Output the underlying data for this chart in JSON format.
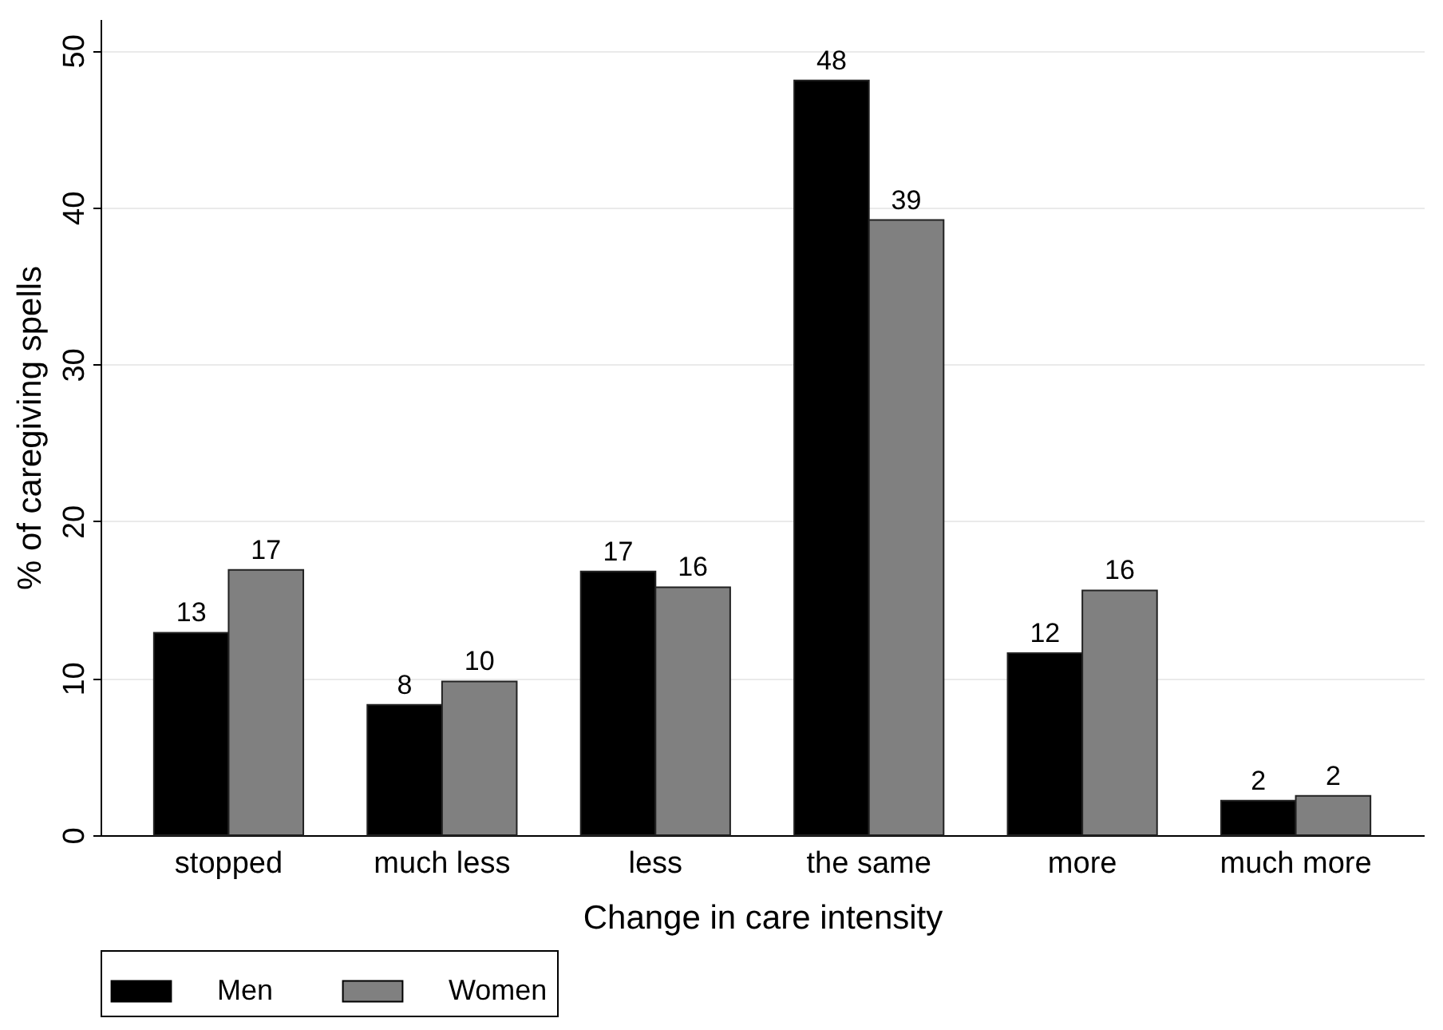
{
  "chart_data": {
    "type": "bar",
    "xlabel": "Change in care intensity",
    "ylabel": "% of caregiving spells",
    "categories": [
      "stopped",
      "much less",
      "less",
      "the same",
      "more",
      "much more"
    ],
    "series": [
      {
        "name": "Men",
        "color": "#000000",
        "values": [
          12.9,
          8.3,
          16.8,
          48.1,
          11.6,
          2.2
        ],
        "value_labels": [
          "13",
          "8",
          "17",
          "48",
          "12",
          "2"
        ]
      },
      {
        "name": "Women",
        "color": "#808080",
        "values": [
          16.9,
          9.8,
          15.8,
          39.2,
          15.6,
          2.5
        ],
        "value_labels": [
          "17",
          "10",
          "16",
          "39",
          "16",
          "2"
        ]
      }
    ],
    "ylim": [
      0,
      52
    ],
    "yticks": [
      0,
      10,
      20,
      30,
      40,
      50
    ],
    "grid": "y",
    "legend": "bottom"
  }
}
